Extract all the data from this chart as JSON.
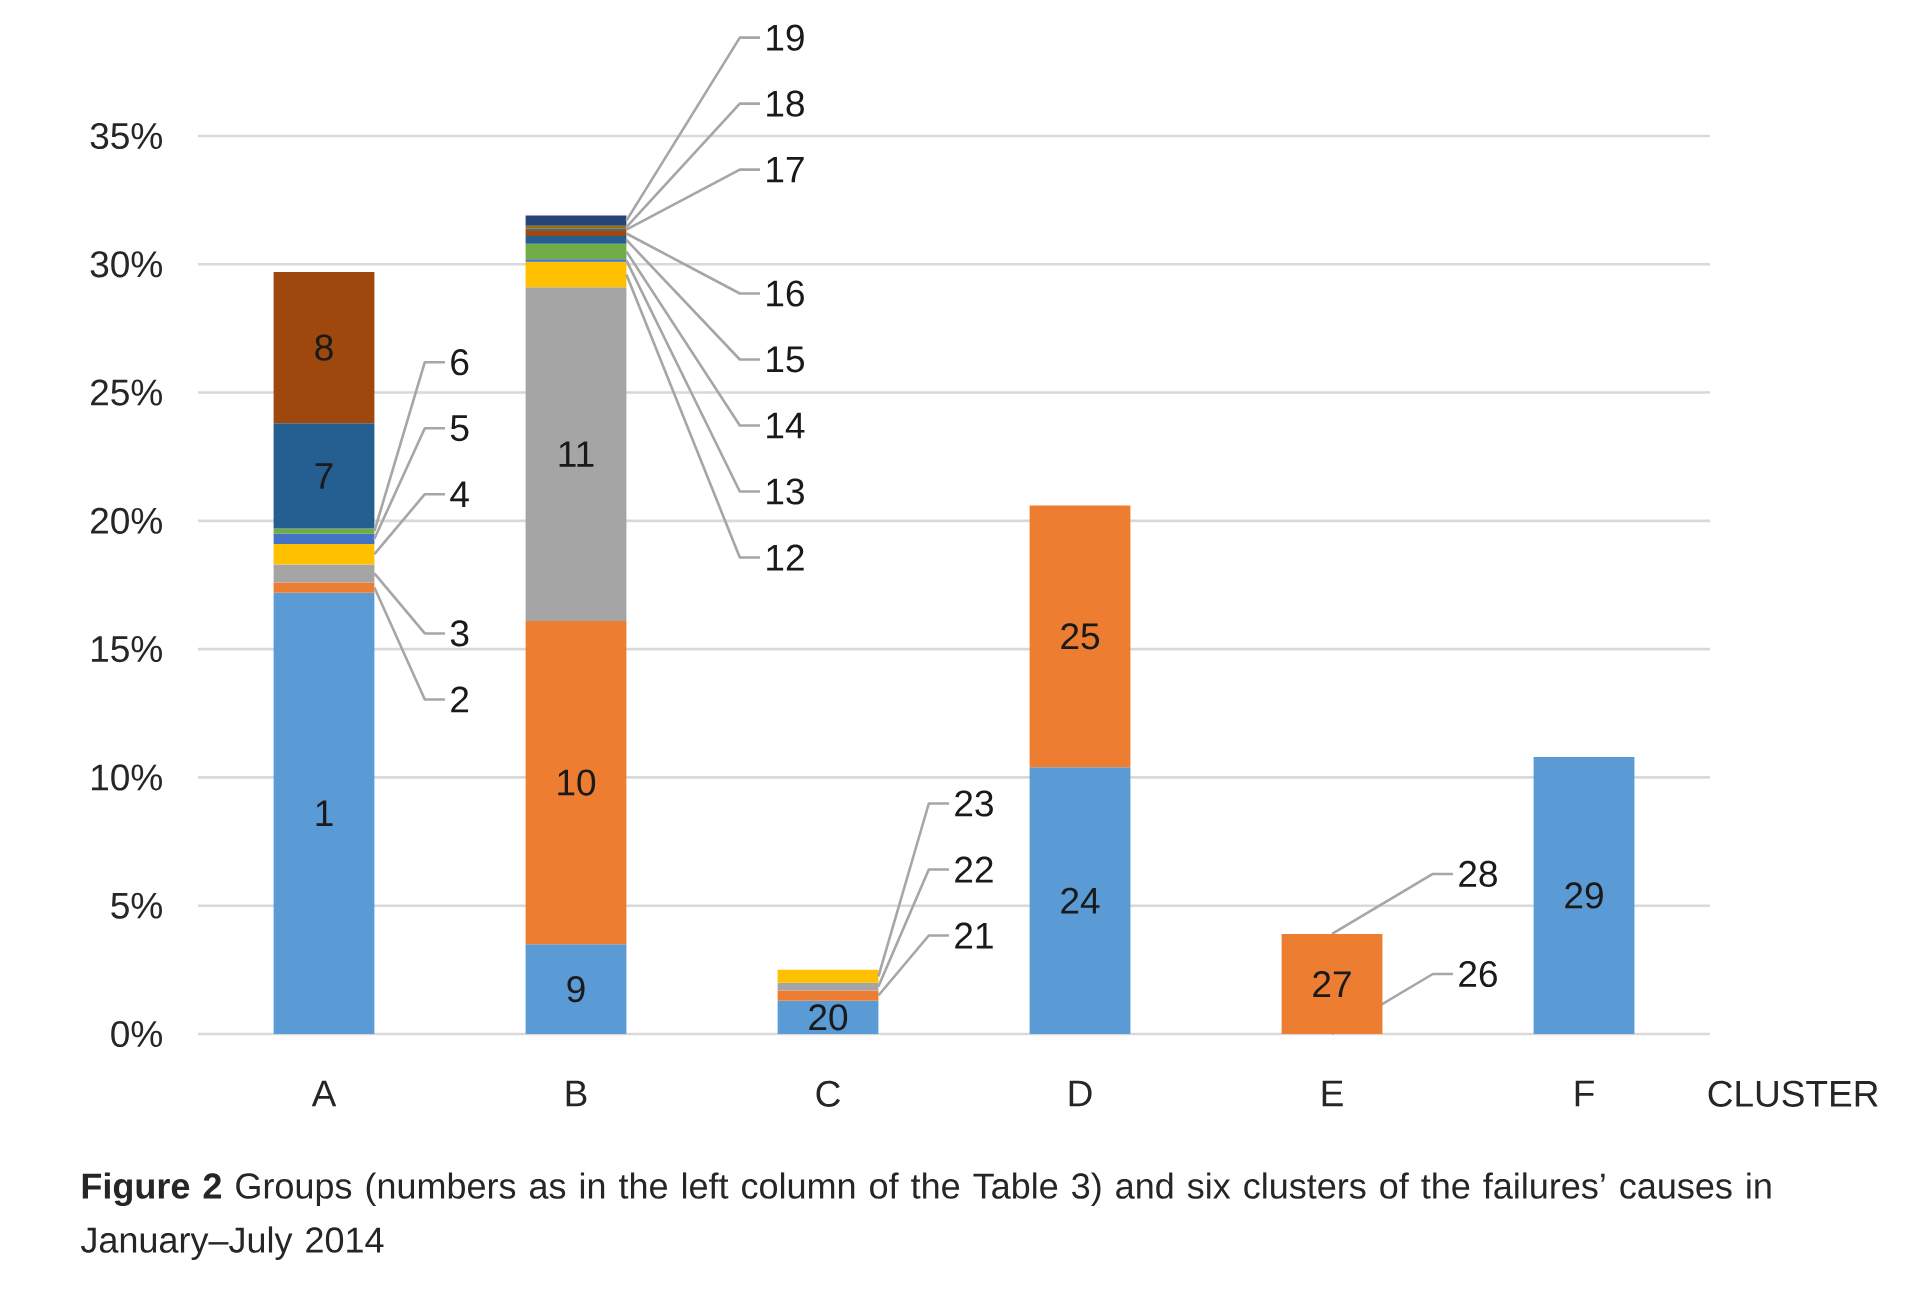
{
  "chart_data": {
    "type": "bar",
    "stacked": true,
    "categories": [
      "A",
      "B",
      "C",
      "D",
      "E",
      "F"
    ],
    "xlabel": "CLUSTER",
    "ylim": [
      0,
      35
    ],
    "yticks": [
      {
        "value": 0,
        "label": "0%"
      },
      {
        "value": 5,
        "label": "5%"
      },
      {
        "value": 10,
        "label": "10%"
      },
      {
        "value": 15,
        "label": "15%"
      },
      {
        "value": 20,
        "label": "20%"
      },
      {
        "value": 25,
        "label": "25%"
      },
      {
        "value": 30,
        "label": "30%"
      },
      {
        "value": 35,
        "label": "35%"
      }
    ],
    "grid": "y",
    "series": [
      {
        "name": "1",
        "color": "#5b9bd5",
        "values": [
          17.2,
          null,
          null,
          null,
          null,
          null
        ]
      },
      {
        "name": "2",
        "color": "#ed7d31",
        "values": [
          0.4,
          null,
          null,
          null,
          null,
          null
        ]
      },
      {
        "name": "3",
        "color": "#a5a5a5",
        "values": [
          0.7,
          null,
          null,
          null,
          null,
          null
        ]
      },
      {
        "name": "4",
        "color": "#ffc000",
        "values": [
          0.8,
          null,
          null,
          null,
          null,
          null
        ]
      },
      {
        "name": "5",
        "color": "#4472c4",
        "values": [
          0.4,
          null,
          null,
          null,
          null,
          null
        ]
      },
      {
        "name": "6",
        "color": "#70ad47",
        "values": [
          0.2,
          null,
          null,
          null,
          null,
          null
        ]
      },
      {
        "name": "7",
        "color": "#255e91",
        "values": [
          4.1,
          null,
          null,
          null,
          null,
          null
        ]
      },
      {
        "name": "8",
        "color": "#9e480e",
        "values": [
          5.9,
          null,
          null,
          null,
          null,
          null
        ]
      },
      {
        "name": "9",
        "color": "#5b9bd5",
        "values": [
          null,
          3.5,
          null,
          null,
          null,
          null
        ]
      },
      {
        "name": "10",
        "color": "#ed7d31",
        "values": [
          null,
          12.6,
          null,
          null,
          null,
          null
        ]
      },
      {
        "name": "11",
        "color": "#a5a5a5",
        "values": [
          null,
          13.0,
          null,
          null,
          null,
          null
        ]
      },
      {
        "name": "12",
        "color": "#ffc000",
        "values": [
          null,
          1.0,
          null,
          null,
          null,
          null
        ]
      },
      {
        "name": "13",
        "color": "#4472c4",
        "values": [
          null,
          0.1,
          null,
          null,
          null,
          null
        ]
      },
      {
        "name": "14",
        "color": "#70ad47",
        "values": [
          null,
          0.6,
          null,
          null,
          null,
          null
        ]
      },
      {
        "name": "15",
        "color": "#255e91",
        "values": [
          null,
          0.3,
          null,
          null,
          null,
          null
        ]
      },
      {
        "name": "16",
        "color": "#9e480e",
        "values": [
          null,
          0.2,
          null,
          null,
          null,
          null
        ]
      },
      {
        "name": "17",
        "color": "#636363",
        "values": [
          null,
          0.1,
          null,
          null,
          null,
          null
        ]
      },
      {
        "name": "18",
        "color": "#997300",
        "values": [
          null,
          0.1,
          null,
          null,
          null,
          null
        ]
      },
      {
        "name": "19",
        "color": "#264478",
        "values": [
          null,
          0.4,
          null,
          null,
          null,
          null
        ]
      },
      {
        "name": "20",
        "color": "#5b9bd5",
        "values": [
          null,
          null,
          1.3,
          null,
          null,
          null
        ]
      },
      {
        "name": "21",
        "color": "#ed7d31",
        "values": [
          null,
          null,
          0.4,
          null,
          null,
          null
        ]
      },
      {
        "name": "22",
        "color": "#a5a5a5",
        "values": [
          null,
          null,
          0.3,
          null,
          null,
          null
        ]
      },
      {
        "name": "23",
        "color": "#ffc000",
        "values": [
          null,
          null,
          0.5,
          null,
          null,
          null
        ]
      },
      {
        "name": "24",
        "color": "#5b9bd5",
        "values": [
          null,
          null,
          null,
          10.4,
          null,
          null
        ]
      },
      {
        "name": "25",
        "color": "#ed7d31",
        "values": [
          null,
          null,
          null,
          10.2,
          null,
          null
        ]
      },
      {
        "name": "27",
        "color": "#ed7d31",
        "values": [
          null,
          null,
          null,
          null,
          3.9,
          null
        ]
      },
      {
        "name": "29",
        "color": "#5b9bd5",
        "values": [
          null,
          null,
          null,
          null,
          null,
          10.8
        ]
      }
    ],
    "annotations": [
      {
        "text": "26",
        "x": "E",
        "y": 0
      },
      {
        "text": "28",
        "x": "E",
        "y": 3.9
      },
      "**Figure 2** Groups (numbers as in the left column of the Table 3) and six clusters of the failures’ causes in January–July 2014"
    ]
  }
}
